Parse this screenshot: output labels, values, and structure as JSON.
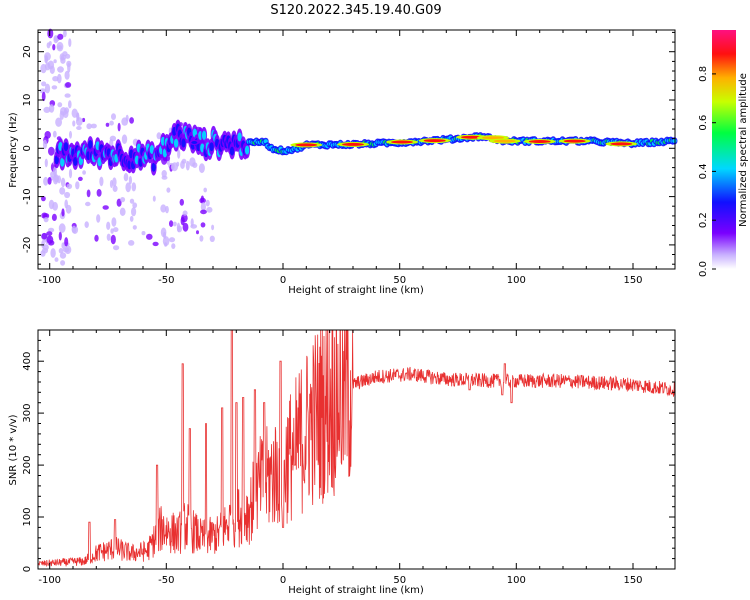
{
  "title": "S120.2022.345.19.40.G09",
  "colors": {
    "snr_line": "#e83030",
    "axis": "#000000"
  },
  "chart_data": [
    {
      "type": "heatmap",
      "xlabel": "Height of straight line (km)",
      "ylabel": "Frequency (Hz)",
      "xlim": [
        -105,
        168
      ],
      "ylim": [
        -25,
        24.5
      ],
      "x_ticks": [
        -100,
        -50,
        0,
        50,
        100,
        150
      ],
      "y_ticks": [
        -20,
        -10,
        0,
        10,
        20
      ],
      "colorbar": {
        "label": "Normalized spectral amplitude",
        "range": [
          0,
          0.98
        ],
        "ticks": [
          0.0,
          0.2,
          0.4,
          0.6,
          0.8
        ]
      },
      "ridge": [
        [
          -95,
          -1.5
        ],
        [
          -85,
          -1
        ],
        [
          -75,
          -1
        ],
        [
          -65,
          -1.5
        ],
        [
          -55,
          -2
        ],
        [
          -45,
          3
        ],
        [
          -35,
          1
        ],
        [
          -25,
          1
        ],
        [
          -15,
          1
        ],
        [
          -8,
          1.5
        ],
        [
          -5,
          0
        ],
        [
          0,
          -0.5
        ],
        [
          5,
          -0.2
        ],
        [
          10,
          0.7
        ],
        [
          30,
          0.8
        ],
        [
          50,
          1.2
        ],
        [
          70,
          1.8
        ],
        [
          85,
          2.5
        ],
        [
          95,
          1.5
        ],
        [
          110,
          1.5
        ],
        [
          130,
          1.5
        ],
        [
          150,
          1
        ],
        [
          168,
          1.5
        ]
      ],
      "peaks": [
        [
          -38,
          1.2,
          0.4
        ],
        [
          10,
          0.7,
          0.95
        ],
        [
          30,
          0.8,
          0.9
        ],
        [
          51,
          1.3,
          0.9
        ],
        [
          65,
          1.6,
          0.9
        ],
        [
          81,
          2.3,
          0.9
        ],
        [
          90,
          2.2,
          0.85
        ],
        [
          95,
          1.5,
          0.85
        ],
        [
          110,
          1.4,
          0.95
        ],
        [
          125,
          1.5,
          0.95
        ],
        [
          145,
          0.9,
          0.9
        ]
      ]
    },
    {
      "type": "line",
      "xlabel": "Height of straight line (km)",
      "ylabel": "SNR (10 * v/v)",
      "xlim": [
        -105,
        168
      ],
      "ylim": [
        0,
        460
      ],
      "x_ticks": [
        -100,
        -50,
        0,
        50,
        100,
        150
      ],
      "y_ticks": [
        0,
        100,
        200,
        300,
        400
      ],
      "series": [
        {
          "envelope": [
            [
              -105,
              10
            ],
            [
              -85,
              15
            ],
            [
              -80,
              30
            ],
            [
              -72,
              40
            ],
            [
              -65,
              30
            ],
            [
              -58,
              35
            ],
            [
              -52,
              80
            ],
            [
              -45,
              65
            ],
            [
              -42,
              85
            ],
            [
              -35,
              60
            ],
            [
              -28,
              65
            ],
            [
              -22,
              95
            ],
            [
              -15,
              110
            ],
            [
              -10,
              160
            ],
            [
              -5,
              180
            ],
            [
              0,
              200
            ],
            [
              5,
              230
            ],
            [
              10,
              270
            ],
            [
              15,
              300
            ],
            [
              20,
              330
            ],
            [
              30,
              355
            ],
            [
              40,
              370
            ],
            [
              55,
              375
            ],
            [
              70,
              365
            ],
            [
              90,
              362
            ],
            [
              120,
              362
            ],
            [
              150,
              355
            ],
            [
              168,
              345
            ]
          ],
          "spikes": [
            [
              -83,
              90
            ],
            [
              -72,
              95
            ],
            [
              -54,
              200
            ],
            [
              -43,
              395
            ],
            [
              -40,
              270
            ],
            [
              -33,
              280
            ],
            [
              -26,
              310
            ],
            [
              -22,
              460
            ],
            [
              -20,
              320
            ],
            [
              -17,
              330
            ],
            [
              -12,
              345
            ],
            [
              -8,
              320
            ],
            [
              -1,
              400
            ],
            [
              0,
              80
            ],
            [
              5,
              200
            ],
            [
              95,
              395
            ],
            [
              94,
              335
            ],
            [
              98,
              320
            ],
            [
              80,
              345
            ]
          ]
        }
      ]
    }
  ]
}
